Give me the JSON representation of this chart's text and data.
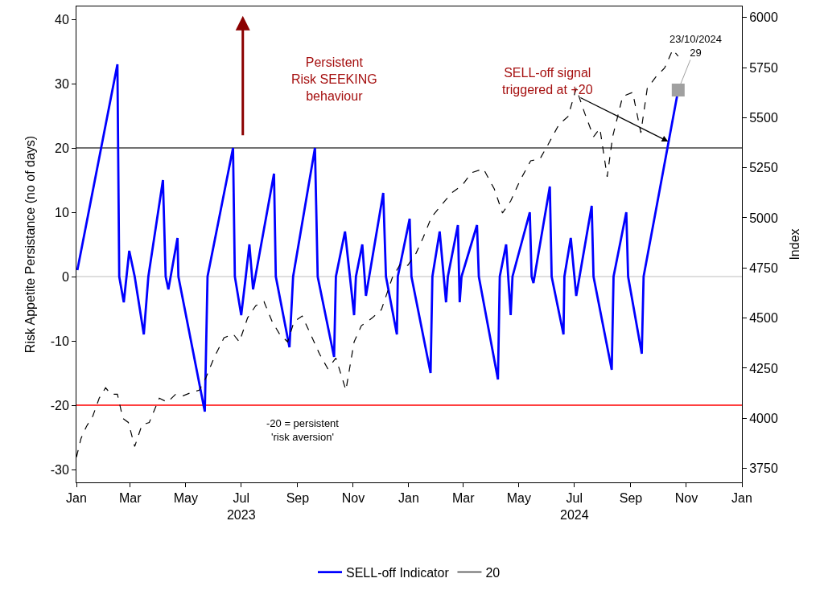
{
  "chart_data": {
    "type": "line",
    "ylabel": "Risk Appetite Persistance (no of days)",
    "y2label": "Index",
    "xlim": [
      "2023-01-01",
      "2025-01-01"
    ],
    "xticks": [
      {
        "value": "2023-01-01",
        "label": "Jan"
      },
      {
        "value": "2023-03-01",
        "label": "Mar"
      },
      {
        "value": "2023-05-01",
        "label": "May"
      },
      {
        "value": "2023-07-01",
        "label": "Jul\n2023"
      },
      {
        "value": "2023-09-01",
        "label": "Sep"
      },
      {
        "value": "2023-11-01",
        "label": "Nov"
      },
      {
        "value": "2024-01-01",
        "label": "Jan"
      },
      {
        "value": "2024-03-01",
        "label": "Mar"
      },
      {
        "value": "2024-05-01",
        "label": "May"
      },
      {
        "value": "2024-07-01",
        "label": "Jul\n2024"
      },
      {
        "value": "2024-09-01",
        "label": "Sep"
      },
      {
        "value": "2024-11-01",
        "label": "Nov"
      },
      {
        "value": "2025-01-01",
        "label": "Jan"
      }
    ],
    "ylim": [
      -32,
      42
    ],
    "yticks": [
      -30,
      -20,
      -10,
      0,
      10,
      20,
      30,
      40
    ],
    "y2lim": [
      3680,
      6055
    ],
    "y2ticks": [
      3750,
      4000,
      4250,
      4500,
      4750,
      5000,
      5250,
      5500,
      5750,
      6000
    ],
    "grid": false,
    "legend": "bottom",
    "marker": "none",
    "series": [
      {
        "color": "#000000",
        "axis": "y2",
        "line_style": "dashed",
        "x": [
          "2023-01-01",
          "2023-01-06",
          "2023-01-12",
          "2023-01-19",
          "2023-01-26",
          "2023-02-02",
          "2023-02-08",
          "2023-02-15",
          "2023-02-21",
          "2023-02-27",
          "2023-03-06",
          "2023-03-14",
          "2023-03-22",
          "2023-04-02",
          "2023-04-11",
          "2023-04-20",
          "2023-04-28",
          "2023-05-07",
          "2023-05-16",
          "2023-05-23",
          "2023-06-01",
          "2023-06-12",
          "2023-06-22",
          "2023-06-29",
          "2023-07-08",
          "2023-07-17",
          "2023-07-26",
          "2023-08-04",
          "2023-08-12",
          "2023-08-21",
          "2023-08-28",
          "2023-09-06",
          "2023-09-17",
          "2023-09-25",
          "2023-10-04",
          "2023-10-13",
          "2023-10-24",
          "2023-11-02",
          "2023-11-10",
          "2023-11-22",
          "2023-12-02",
          "2023-12-14",
          "2023-12-23",
          "2023-12-31",
          "2024-01-09",
          "2024-01-17",
          "2024-01-26",
          "2024-02-06",
          "2024-02-17",
          "2024-02-29",
          "2024-03-10",
          "2024-03-23",
          "2024-04-04",
          "2024-04-13",
          "2024-04-22",
          "2024-05-02",
          "2024-05-14",
          "2024-05-24",
          "2024-06-02",
          "2024-06-14",
          "2024-06-24",
          "2024-07-03",
          "2024-07-12",
          "2024-07-22",
          "2024-07-29",
          "2024-08-06",
          "2024-08-12",
          "2024-08-23",
          "2024-09-03",
          "2024-09-12",
          "2024-09-19",
          "2024-09-29",
          "2024-10-08",
          "2024-10-17",
          "2024-10-23"
        ],
        "values": [
          3806,
          3899,
          3959,
          4011,
          4100,
          4152,
          4120,
          4120,
          3999,
          3979,
          3859,
          3967,
          3979,
          4100,
          4080,
          4120,
          4112,
          4128,
          4140,
          4200,
          4300,
          4401,
          4421,
          4381,
          4501,
          4562,
          4582,
          4482,
          4421,
          4381,
          4482,
          4510,
          4401,
          4321,
          4248,
          4300,
          4140,
          4381,
          4462,
          4501,
          4542,
          4702,
          4771,
          4763,
          4823,
          4903,
          5004,
          5064,
          5124,
          5164,
          5225,
          5245,
          5144,
          5024,
          5084,
          5184,
          5285,
          5293,
          5365,
          5466,
          5506,
          5646,
          5526,
          5405,
          5446,
          5205,
          5405,
          5606,
          5626,
          5425,
          5646,
          5707,
          5747,
          5839,
          5807
        ]
      },
      {
        "name": "SELL-off Indicator",
        "color": "#0000ff",
        "line_style": "solid",
        "x": [
          "2023-01-02",
          "2023-02-15",
          "2023-02-17",
          "2023-02-22",
          "2023-02-28",
          "2023-03-06",
          "2023-03-16",
          "2023-03-21",
          "2023-04-06",
          "2023-04-09",
          "2023-04-12",
          "2023-04-22",
          "2023-04-23",
          "2023-05-22",
          "2023-05-25",
          "2023-06-22",
          "2023-06-24",
          "2023-07-01",
          "2023-07-06",
          "2023-07-10",
          "2023-07-14",
          "2023-08-06",
          "2023-08-08",
          "2023-08-23",
          "2023-08-27",
          "2023-09-20",
          "2023-09-23",
          "2023-10-11",
          "2023-10-13",
          "2023-10-23",
          "2023-11-02",
          "2023-11-04",
          "2023-11-11",
          "2023-11-15",
          "2023-12-04",
          "2023-12-07",
          "2023-12-19",
          "2023-12-20",
          "2024-01-02",
          "2024-01-04",
          "2024-01-25",
          "2024-01-27",
          "2024-02-04",
          "2024-02-11",
          "2024-02-13",
          "2024-02-24",
          "2024-02-26",
          "2024-02-28",
          "2024-03-16",
          "2024-03-18",
          "2024-04-08",
          "2024-04-10",
          "2024-04-17",
          "2024-04-22",
          "2024-04-24",
          "2024-05-13",
          "2024-05-15",
          "2024-05-17",
          "2024-06-04",
          "2024-06-06",
          "2024-06-19",
          "2024-06-20",
          "2024-06-27",
          "2024-07-03",
          "2024-07-20",
          "2024-07-22",
          "2024-08-11",
          "2024-08-13",
          "2024-08-27",
          "2024-08-29",
          "2024-09-13",
          "2024-09-15",
          "2024-10-23"
        ],
        "values": [
          1,
          33,
          0,
          -4,
          4,
          0,
          -9,
          0,
          15,
          0,
          -2,
          6,
          0,
          -21,
          0,
          20,
          0,
          -6,
          0,
          5,
          -2,
          16,
          0,
          -11,
          0,
          20,
          0,
          -12.5,
          0,
          7,
          -6,
          0,
          5,
          -3,
          13,
          0,
          -9,
          0,
          9,
          0,
          -15,
          0,
          7,
          -4,
          0,
          8,
          -4,
          0,
          8,
          0,
          -16,
          0,
          5,
          -6,
          0,
          10,
          0,
          -1,
          14,
          0,
          -9,
          0,
          6,
          -3,
          11,
          0,
          -14.5,
          0,
          10,
          0,
          -12,
          0,
          29
        ]
      }
    ],
    "ref_lines": [
      {
        "axis": "y",
        "value": 20,
        "label": "20",
        "color": "#404040"
      },
      {
        "axis": "y",
        "value": 0,
        "color": "#d3d3d3"
      },
      {
        "axis": "y",
        "value": -20,
        "color": "#ff0000"
      }
    ],
    "annotations": [
      "Persistent\nRisk SEEKING\nbehaviour",
      {
        "text": "SELL-off signal\ntriggered at +20",
        "x": "2024-10-12",
        "y": 21
      },
      "-20 = persistent\n'risk aversion'",
      {
        "text": "23/10/2024\n29",
        "x": "2024-10-23",
        "y": 29
      }
    ]
  }
}
